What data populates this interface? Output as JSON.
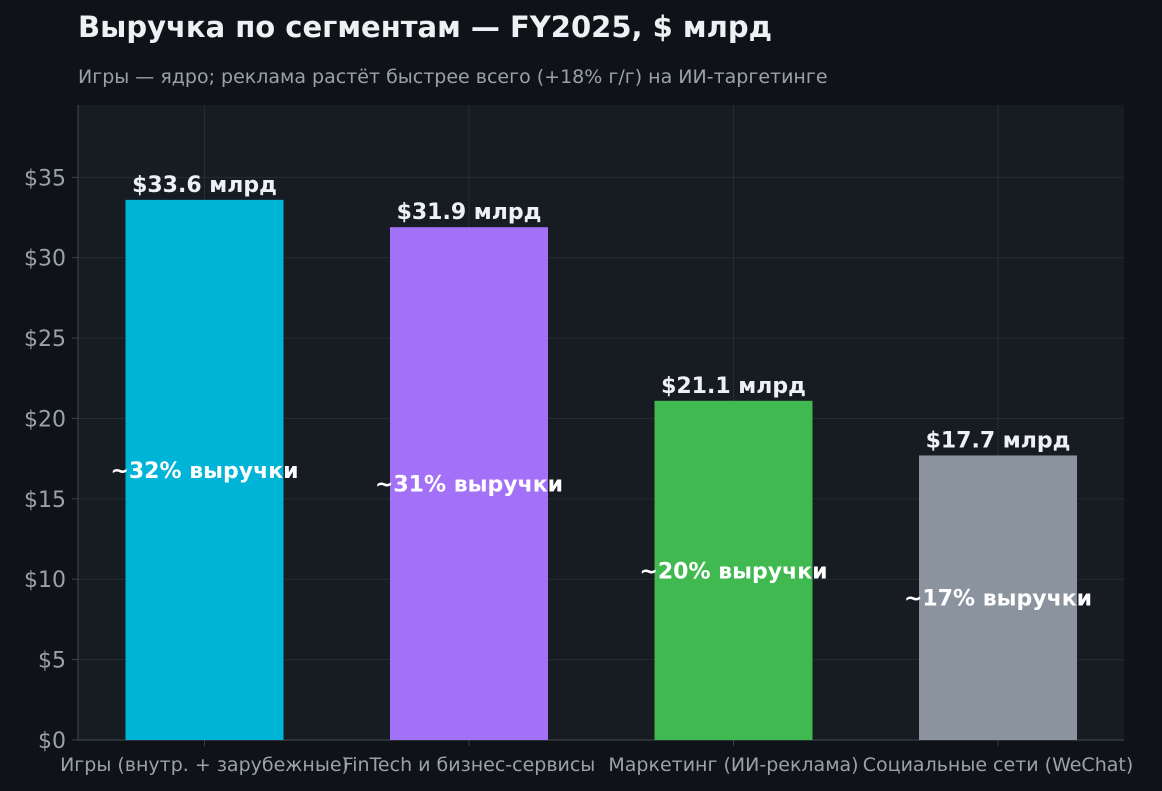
{
  "colors": {
    "page_bg": "#0f1317",
    "plot_bg": "#171b22",
    "grid": "#262c35",
    "axis": "#3a414b",
    "text_main": "#eef1f4",
    "text_muted": "#9aa1a9"
  },
  "chart_data": {
    "type": "bar",
    "title": "Выручка по сегментам — FY2025, $ млрд",
    "subtitle": "Игры — ядро; реклама растёт быстрее всего (+18% г/г) на ИИ-таргетинге",
    "categories": [
      "Игры (внутр. + зарубежные)",
      "FinTech и бизнес-сервисы",
      "Маркетинг (ИИ-реклама)",
      "Социальные сети (WeChat)"
    ],
    "values": [
      33.6,
      31.9,
      21.1,
      17.7
    ],
    "value_labels": [
      "$33.6 млрд",
      "$31.9 млрд",
      "$21.1 млрд",
      "$17.7 млрд"
    ],
    "share_labels": [
      "~32% выручки",
      "~31% выручки",
      "~20% выручки",
      "~17% выручки"
    ],
    "bar_colors": [
      "#00b4d8",
      "#a371f7",
      "#3fb950",
      "#8b949e"
    ],
    "ylim": [
      0,
      39.5
    ],
    "yticks": [
      0,
      5,
      10,
      15,
      20,
      25,
      30,
      35
    ],
    "ytick_labels": [
      "$0",
      "$5",
      "$10",
      "$15",
      "$20",
      "$25",
      "$30",
      "$35"
    ],
    "grid": true,
    "xlabel": "",
    "ylabel": ""
  }
}
